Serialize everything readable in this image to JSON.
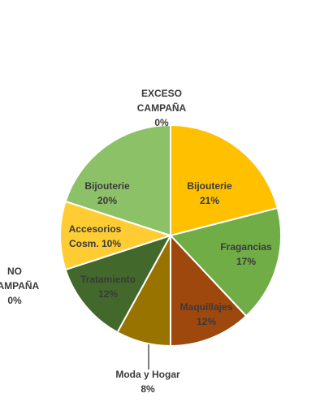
{
  "chart_data": {
    "type": "pie",
    "title": "",
    "slices": [
      {
        "label_lines": [
          "Bijouterie",
          "21%"
        ],
        "value": 21,
        "color": "#FFC000",
        "label_color": "#3a3a3a"
      },
      {
        "label_lines": [
          "Fragancias",
          "17%"
        ],
        "value": 17,
        "color": "#70AD47",
        "label_color": "#3a3a3a"
      },
      {
        "label_lines": [
          "Maquillajes",
          "12%"
        ],
        "value": 12,
        "color": "#9E480E",
        "label_color": "#3a3a3a"
      },
      {
        "label_lines": [
          "Moda y Hogar",
          "8%"
        ],
        "value": 8,
        "color": "#997300",
        "label_color": "#3a3a3a"
      },
      {
        "label_lines": [
          "Tratamiento",
          "12%"
        ],
        "value": 12,
        "color": "#43682B",
        "label_color": "#3a3a3a"
      },
      {
        "label_lines": [
          "NO",
          "CAMPAÑA",
          "0%"
        ],
        "value": 0,
        "color": "#636363",
        "label_color": "#3a3a3a"
      },
      {
        "label_lines": [
          "Accesorios",
          "Cosm. 10%"
        ],
        "value": 10,
        "color": "#FFCD33",
        "label_color": "#3a3a3a"
      },
      {
        "label_lines": [
          "Bijouterie",
          "20%"
        ],
        "value": 20,
        "color": "#8CC168",
        "label_color": "#3a3a3a"
      },
      {
        "label_lines": [
          "EXCESO",
          "CAMPAÑA",
          "0%"
        ],
        "value": 0,
        "color": "#264478",
        "label_color": "#3a3a3a"
      }
    ],
    "border_color": "#ffffff"
  }
}
